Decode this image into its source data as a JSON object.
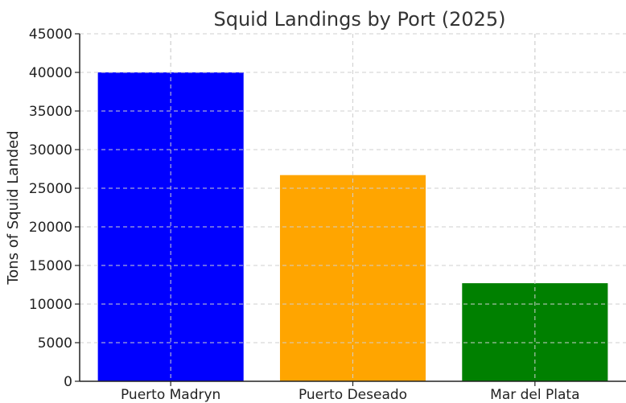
{
  "chart_data": {
    "type": "bar",
    "title": "Squid Landings by Port (2025)",
    "xlabel": "",
    "ylabel": "Tons of Squid Landed",
    "categories": [
      "Puerto Madryn",
      "Puerto Deseado",
      "Mar del Plata"
    ],
    "values": [
      40000,
      26700,
      12700
    ],
    "colors": [
      "#0000ff",
      "#ffa500",
      "#008000"
    ],
    "ylim": [
      0,
      45000
    ],
    "yticks": [
      0,
      5000,
      10000,
      15000,
      20000,
      25000,
      30000,
      35000,
      40000,
      45000
    ],
    "grid": true,
    "legend": "none"
  }
}
